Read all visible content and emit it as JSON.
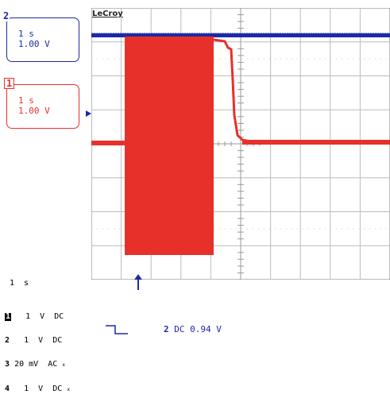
{
  "brand": "LeCroy",
  "channels": {
    "ch2": {
      "number": "2",
      "timebase": "1 s",
      "volts": "1.00 V",
      "color": "#1c2aa6"
    },
    "ch1": {
      "number": "1",
      "timebase": "1 s",
      "volts": "1.00 V",
      "color": "#e8302b"
    }
  },
  "timebase_readout": "1  s",
  "channel_settings": [
    {
      "num": "1",
      "value": "1",
      "unit": "V",
      "coupling": "DC"
    },
    {
      "num": "2",
      "value": "1",
      "unit": "V",
      "coupling": "DC"
    },
    {
      "num": "3",
      "value": "20",
      "unit": "mV",
      "coupling": "AC"
    },
    {
      "num": "4",
      "value": "1",
      "unit": "V",
      "coupling": "DC"
    }
  ],
  "trigger_readout": {
    "channel": "2",
    "text": "DC 0.94 V"
  }
}
